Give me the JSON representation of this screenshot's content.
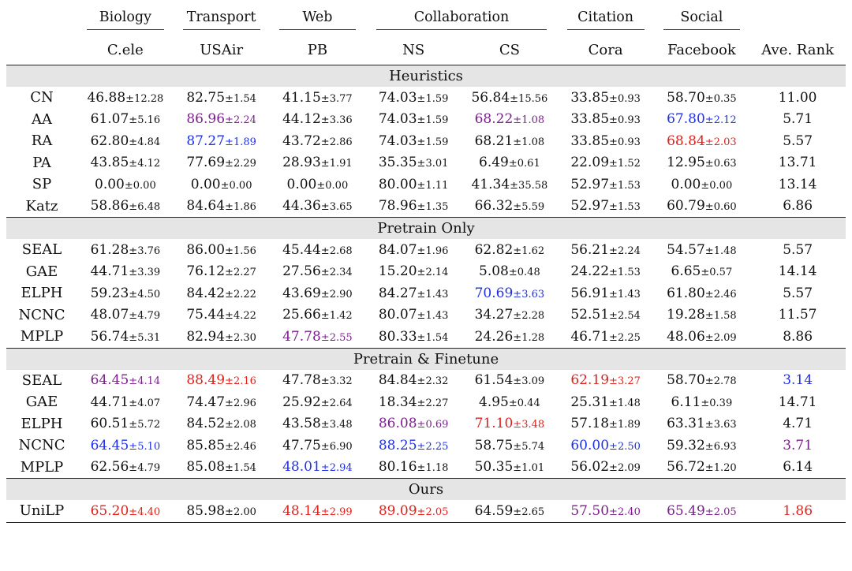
{
  "domains": [
    {
      "label": "Biology",
      "span": 1
    },
    {
      "label": "Transport",
      "span": 1
    },
    {
      "label": "Web",
      "span": 1
    },
    {
      "label": "Collaboration",
      "span": 2
    },
    {
      "label": "Citation",
      "span": 1
    },
    {
      "label": "Social",
      "span": 1
    }
  ],
  "datasets": [
    "C.ele",
    "USAir",
    "PB",
    "NS",
    "CS",
    "Cora",
    "Facebook"
  ],
  "rank_header": "Ave. Rank",
  "colors": {
    "red": "#e0201b",
    "blue": "#1f2fe8",
    "purple": "#7c1f8e"
  },
  "groups": [
    {
      "title": "Heuristics",
      "rows": [
        {
          "method": "CN",
          "cells": [
            [
              "46.88",
              "12.28",
              ""
            ],
            [
              "82.75",
              "1.54",
              ""
            ],
            [
              "41.15",
              "3.77",
              ""
            ],
            [
              "74.03",
              "1.59",
              ""
            ],
            [
              "56.84",
              "15.56",
              ""
            ],
            [
              "33.85",
              "0.93",
              ""
            ],
            [
              "58.70",
              "0.35",
              ""
            ]
          ],
          "rank": [
            "11.00",
            ""
          ]
        },
        {
          "method": "AA",
          "cells": [
            [
              "61.07",
              "5.16",
              ""
            ],
            [
              "86.96",
              "2.24",
              "purple"
            ],
            [
              "44.12",
              "3.36",
              ""
            ],
            [
              "74.03",
              "1.59",
              ""
            ],
            [
              "68.22",
              "1.08",
              "purple"
            ],
            [
              "33.85",
              "0.93",
              ""
            ],
            [
              "67.80",
              "2.12",
              "blue"
            ]
          ],
          "rank": [
            "5.71",
            ""
          ]
        },
        {
          "method": "RA",
          "cells": [
            [
              "62.80",
              "4.84",
              ""
            ],
            [
              "87.27",
              "1.89",
              "blue"
            ],
            [
              "43.72",
              "2.86",
              ""
            ],
            [
              "74.03",
              "1.59",
              ""
            ],
            [
              "68.21",
              "1.08",
              ""
            ],
            [
              "33.85",
              "0.93",
              ""
            ],
            [
              "68.84",
              "2.03",
              "red"
            ]
          ],
          "rank": [
            "5.57",
            ""
          ]
        },
        {
          "method": "PA",
          "cells": [
            [
              "43.85",
              "4.12",
              ""
            ],
            [
              "77.69",
              "2.29",
              ""
            ],
            [
              "28.93",
              "1.91",
              ""
            ],
            [
              "35.35",
              "3.01",
              ""
            ],
            [
              "6.49",
              "0.61",
              ""
            ],
            [
              "22.09",
              "1.52",
              ""
            ],
            [
              "12.95",
              "0.63",
              ""
            ]
          ],
          "rank": [
            "13.71",
            ""
          ]
        },
        {
          "method": "SP",
          "cells": [
            [
              "0.00",
              "0.00",
              ""
            ],
            [
              "0.00",
              "0.00",
              ""
            ],
            [
              "0.00",
              "0.00",
              ""
            ],
            [
              "80.00",
              "1.11",
              ""
            ],
            [
              "41.34",
              "35.58",
              ""
            ],
            [
              "52.97",
              "1.53",
              ""
            ],
            [
              "0.00",
              "0.00",
              ""
            ]
          ],
          "rank": [
            "13.14",
            ""
          ]
        },
        {
          "method": "Katz",
          "cells": [
            [
              "58.86",
              "6.48",
              ""
            ],
            [
              "84.64",
              "1.86",
              ""
            ],
            [
              "44.36",
              "3.65",
              ""
            ],
            [
              "78.96",
              "1.35",
              ""
            ],
            [
              "66.32",
              "5.59",
              ""
            ],
            [
              "52.97",
              "1.53",
              ""
            ],
            [
              "60.79",
              "0.60",
              ""
            ]
          ],
          "rank": [
            "6.86",
            ""
          ]
        }
      ]
    },
    {
      "title": "Pretrain Only",
      "rows": [
        {
          "method": "SEAL",
          "cells": [
            [
              "61.28",
              "3.76",
              ""
            ],
            [
              "86.00",
              "1.56",
              ""
            ],
            [
              "45.44",
              "2.68",
              ""
            ],
            [
              "84.07",
              "1.96",
              ""
            ],
            [
              "62.82",
              "1.62",
              ""
            ],
            [
              "56.21",
              "2.24",
              ""
            ],
            [
              "54.57",
              "1.48",
              ""
            ]
          ],
          "rank": [
            "5.57",
            ""
          ]
        },
        {
          "method": "GAE",
          "cells": [
            [
              "44.71",
              "3.39",
              ""
            ],
            [
              "76.12",
              "2.27",
              ""
            ],
            [
              "27.56",
              "2.34",
              ""
            ],
            [
              "15.20",
              "2.14",
              ""
            ],
            [
              "5.08",
              "0.48",
              ""
            ],
            [
              "24.22",
              "1.53",
              ""
            ],
            [
              "6.65",
              "0.57",
              ""
            ]
          ],
          "rank": [
            "14.14",
            ""
          ]
        },
        {
          "method": "ELPH",
          "cells": [
            [
              "59.23",
              "4.50",
              ""
            ],
            [
              "84.42",
              "2.22",
              ""
            ],
            [
              "43.69",
              "2.90",
              ""
            ],
            [
              "84.27",
              "1.43",
              ""
            ],
            [
              "70.69",
              "3.63",
              "blue"
            ],
            [
              "56.91",
              "1.43",
              ""
            ],
            [
              "61.80",
              "2.46",
              ""
            ]
          ],
          "rank": [
            "5.57",
            ""
          ]
        },
        {
          "method": "NCNC",
          "cells": [
            [
              "48.07",
              "4.79",
              ""
            ],
            [
              "75.44",
              "4.22",
              ""
            ],
            [
              "25.66",
              "1.42",
              ""
            ],
            [
              "80.07",
              "1.43",
              ""
            ],
            [
              "34.27",
              "2.28",
              ""
            ],
            [
              "52.51",
              "2.54",
              ""
            ],
            [
              "19.28",
              "1.58",
              ""
            ]
          ],
          "rank": [
            "11.57",
            ""
          ]
        },
        {
          "method": "MPLP",
          "cells": [
            [
              "56.74",
              "5.31",
              ""
            ],
            [
              "82.94",
              "2.30",
              ""
            ],
            [
              "47.78",
              "2.55",
              "purple"
            ],
            [
              "80.33",
              "1.54",
              ""
            ],
            [
              "24.26",
              "1.28",
              ""
            ],
            [
              "46.71",
              "2.25",
              ""
            ],
            [
              "48.06",
              "2.09",
              ""
            ]
          ],
          "rank": [
            "8.86",
            ""
          ]
        }
      ]
    },
    {
      "title": "Pretrain & Finetune",
      "rows": [
        {
          "method": "SEAL",
          "cells": [
            [
              "64.45",
              "4.14",
              "purple"
            ],
            [
              "88.49",
              "2.16",
              "red"
            ],
            [
              "47.78",
              "3.32",
              ""
            ],
            [
              "84.84",
              "2.32",
              ""
            ],
            [
              "61.54",
              "3.09",
              ""
            ],
            [
              "62.19",
              "3.27",
              "red"
            ],
            [
              "58.70",
              "2.78",
              ""
            ]
          ],
          "rank": [
            "3.14",
            "blue"
          ]
        },
        {
          "method": "GAE",
          "cells": [
            [
              "44.71",
              "4.07",
              ""
            ],
            [
              "74.47",
              "2.96",
              ""
            ],
            [
              "25.92",
              "2.64",
              ""
            ],
            [
              "18.34",
              "2.27",
              ""
            ],
            [
              "4.95",
              "0.44",
              ""
            ],
            [
              "25.31",
              "1.48",
              ""
            ],
            [
              "6.11",
              "0.39",
              ""
            ]
          ],
          "rank": [
            "14.71",
            ""
          ]
        },
        {
          "method": "ELPH",
          "cells": [
            [
              "60.51",
              "5.72",
              ""
            ],
            [
              "84.52",
              "2.08",
              ""
            ],
            [
              "43.58",
              "3.48",
              ""
            ],
            [
              "86.08",
              "0.69",
              "purple"
            ],
            [
              "71.10",
              "3.48",
              "red"
            ],
            [
              "57.18",
              "1.89",
              ""
            ],
            [
              "63.31",
              "3.63",
              ""
            ]
          ],
          "rank": [
            "4.71",
            ""
          ]
        },
        {
          "method": "NCNC",
          "cells": [
            [
              "64.45",
              "5.10",
              "blue"
            ],
            [
              "85.85",
              "2.46",
              ""
            ],
            [
              "47.75",
              "6.90",
              ""
            ],
            [
              "88.25",
              "2.25",
              "blue"
            ],
            [
              "58.75",
              "5.74",
              ""
            ],
            [
              "60.00",
              "2.50",
              "blue"
            ],
            [
              "59.32",
              "6.93",
              ""
            ]
          ],
          "rank": [
            "3.71",
            "purple"
          ]
        },
        {
          "method": "MPLP",
          "cells": [
            [
              "62.56",
              "4.79",
              ""
            ],
            [
              "85.08",
              "1.54",
              ""
            ],
            [
              "48.01",
              "2.94",
              "blue"
            ],
            [
              "80.16",
              "1.18",
              ""
            ],
            [
              "50.35",
              "1.01",
              ""
            ],
            [
              "56.02",
              "2.09",
              ""
            ],
            [
              "56.72",
              "1.20",
              ""
            ]
          ],
          "rank": [
            "6.14",
            ""
          ]
        }
      ]
    },
    {
      "title": "Ours",
      "rows": [
        {
          "method": "UniLP",
          "cells": [
            [
              "65.20",
              "4.40",
              "red"
            ],
            [
              "85.98",
              "2.00",
              ""
            ],
            [
              "48.14",
              "2.99",
              "red"
            ],
            [
              "89.09",
              "2.05",
              "red"
            ],
            [
              "64.59",
              "2.65",
              ""
            ],
            [
              "57.50",
              "2.40",
              "purple"
            ],
            [
              "65.49",
              "2.05",
              "purple"
            ]
          ],
          "rank": [
            "1.86",
            "red"
          ]
        }
      ]
    }
  ]
}
